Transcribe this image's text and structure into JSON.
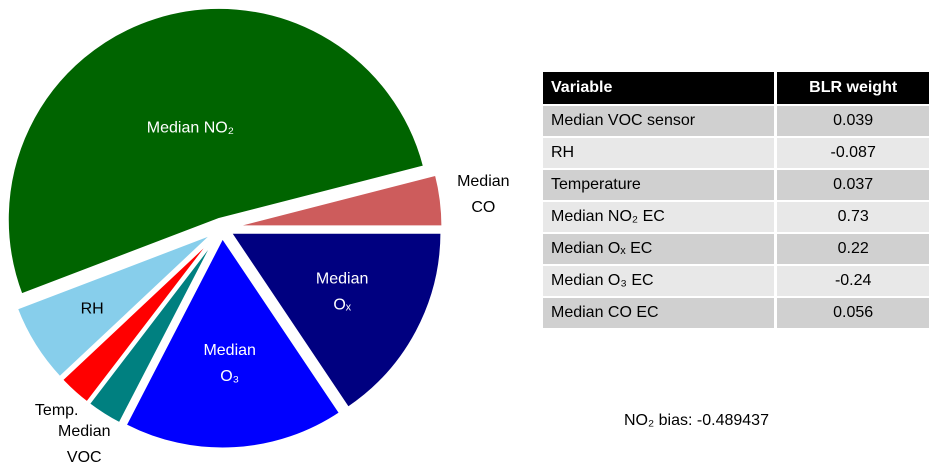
{
  "chart_data": {
    "type": "pie",
    "labels": [
      [
        "Median",
        "Oₓ"
      ],
      [
        "Median",
        "O₃"
      ],
      [
        "Median",
        "VOC"
      ],
      [
        "Temp."
      ],
      [
        "RH"
      ],
      [
        "Median NO₂"
      ],
      [
        "Median",
        "CO"
      ]
    ],
    "values": [
      15.6,
      17.0,
      2.8,
      2.6,
      6.2,
      51.8,
      4.0
    ],
    "colors": [
      "#000080",
      "#0000ff",
      "#008080",
      "#ff0000",
      "#87ceeb",
      "#006400",
      "#cd5c5c"
    ],
    "label_colors": [
      "#ffffff",
      "#ffffff",
      "#000000",
      "#000000",
      "#000000",
      "#ffffff",
      "#000000"
    ]
  },
  "table": {
    "header": [
      "Variable",
      "BLR weight"
    ],
    "rows": [
      [
        "Median VOC sensor",
        0.039
      ],
      [
        "RH",
        -0.087
      ],
      [
        "Temperature",
        0.037
      ],
      [
        "Median NO₂ EC",
        0.73
      ],
      [
        "Median Oₓ EC",
        0.22
      ],
      [
        "Median O₃ EC",
        -0.24
      ],
      [
        "Median CO EC",
        0.056
      ]
    ]
  },
  "note": "NO₂ bias: -0.489437"
}
